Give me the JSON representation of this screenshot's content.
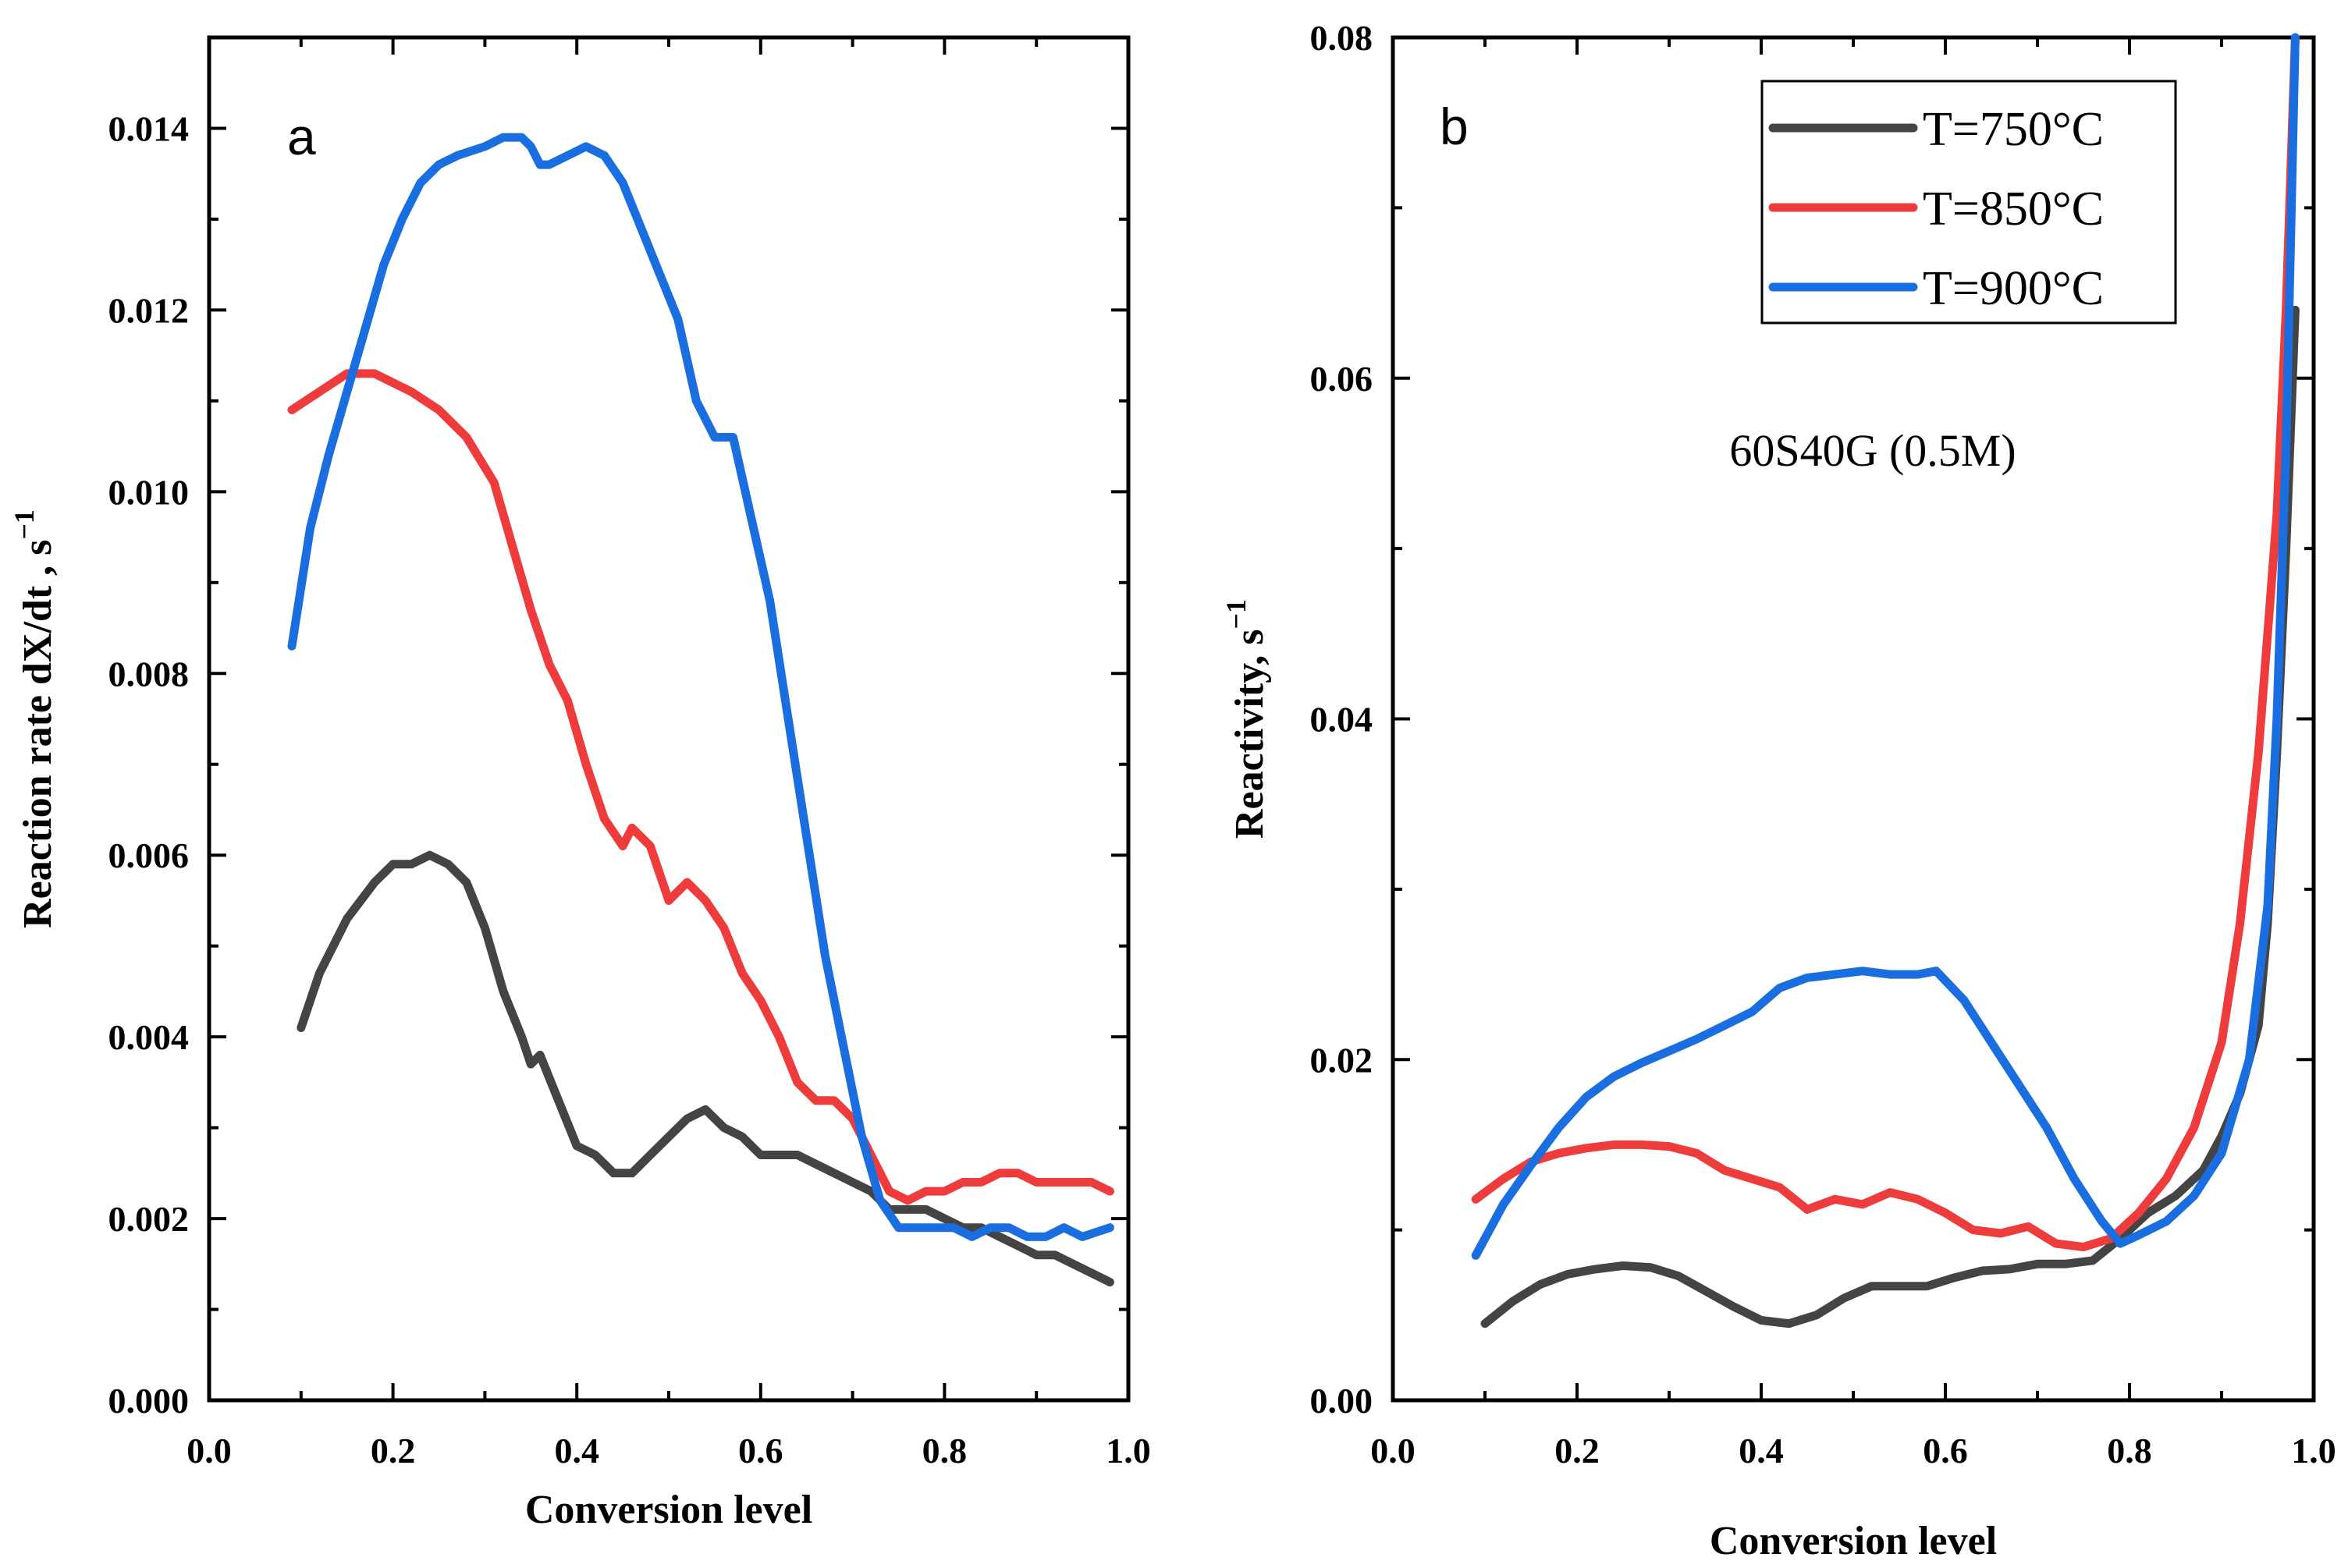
{
  "chart_data": [
    {
      "type": "line",
      "panel_label": "a",
      "title": "",
      "xlabel": "Conversion level",
      "ylabel": "Reaction rate dX/dt , s",
      "ylabel_superscript": "−1",
      "xlim": [
        0.0,
        1.0
      ],
      "ylim": [
        0.0,
        0.015
      ],
      "xticks": [
        0.0,
        0.2,
        0.4,
        0.6,
        0.8,
        1.0
      ],
      "xtick_labels": [
        "0.0",
        "0.2",
        "0.4",
        "0.6",
        "0.8",
        "1.0"
      ],
      "yticks": [
        0.0,
        0.002,
        0.004,
        0.006,
        0.008,
        0.01,
        0.012,
        0.014
      ],
      "ytick_labels": [
        "0.000",
        "0.002",
        "0.004",
        "0.006",
        "0.008",
        "0.010",
        "0.012",
        "0.014"
      ],
      "grid": false,
      "series": [
        {
          "name": "T=750°C",
          "color": "#444444",
          "x": [
            0.1,
            0.12,
            0.15,
            0.18,
            0.2,
            0.22,
            0.24,
            0.26,
            0.28,
            0.3,
            0.32,
            0.34,
            0.35,
            0.36,
            0.38,
            0.4,
            0.42,
            0.44,
            0.46,
            0.48,
            0.5,
            0.52,
            0.54,
            0.56,
            0.58,
            0.6,
            0.62,
            0.64,
            0.66,
            0.68,
            0.7,
            0.72,
            0.74,
            0.76,
            0.78,
            0.8,
            0.82,
            0.84,
            0.86,
            0.88,
            0.9,
            0.92,
            0.94,
            0.96,
            0.98
          ],
          "values": [
            0.0041,
            0.0047,
            0.0053,
            0.0057,
            0.0059,
            0.0059,
            0.006,
            0.0059,
            0.0057,
            0.0052,
            0.0045,
            0.004,
            0.0037,
            0.0038,
            0.0033,
            0.0028,
            0.0027,
            0.0025,
            0.0025,
            0.0027,
            0.0029,
            0.0031,
            0.0032,
            0.003,
            0.0029,
            0.0027,
            0.0027,
            0.0027,
            0.0026,
            0.0025,
            0.0024,
            0.0023,
            0.0021,
            0.0021,
            0.0021,
            0.002,
            0.0019,
            0.0019,
            0.0018,
            0.0017,
            0.0016,
            0.0016,
            0.0015,
            0.0014,
            0.0013
          ]
        },
        {
          "name": "T=850°C",
          "color": "#ee3b3b",
          "x": [
            0.09,
            0.12,
            0.15,
            0.18,
            0.2,
            0.22,
            0.25,
            0.28,
            0.31,
            0.33,
            0.35,
            0.37,
            0.39,
            0.41,
            0.43,
            0.45,
            0.46,
            0.48,
            0.5,
            0.52,
            0.54,
            0.56,
            0.58,
            0.6,
            0.62,
            0.64,
            0.66,
            0.68,
            0.7,
            0.72,
            0.74,
            0.76,
            0.78,
            0.8,
            0.82,
            0.84,
            0.86,
            0.88,
            0.9,
            0.92,
            0.94,
            0.96,
            0.98
          ],
          "values": [
            0.0109,
            0.0111,
            0.0113,
            0.0113,
            0.0112,
            0.0111,
            0.0109,
            0.0106,
            0.0101,
            0.0094,
            0.0087,
            0.0081,
            0.0077,
            0.007,
            0.0064,
            0.0061,
            0.0063,
            0.0061,
            0.0055,
            0.0057,
            0.0055,
            0.0052,
            0.0047,
            0.0044,
            0.004,
            0.0035,
            0.0033,
            0.0033,
            0.0031,
            0.0027,
            0.0023,
            0.0022,
            0.0023,
            0.0023,
            0.0024,
            0.0024,
            0.0025,
            0.0025,
            0.0024,
            0.0024,
            0.0024,
            0.0024,
            0.0023
          ]
        },
        {
          "name": "T=900°C",
          "color": "#1a6ee0",
          "x": [
            0.09,
            0.11,
            0.13,
            0.15,
            0.17,
            0.19,
            0.21,
            0.23,
            0.25,
            0.27,
            0.3,
            0.32,
            0.34,
            0.35,
            0.36,
            0.37,
            0.39,
            0.41,
            0.43,
            0.45,
            0.47,
            0.49,
            0.51,
            0.53,
            0.55,
            0.57,
            0.59,
            0.61,
            0.63,
            0.65,
            0.67,
            0.69,
            0.71,
            0.73,
            0.75,
            0.77,
            0.79,
            0.81,
            0.83,
            0.85,
            0.87,
            0.89,
            0.91,
            0.93,
            0.95,
            0.98
          ],
          "values": [
            0.0083,
            0.0096,
            0.0104,
            0.0111,
            0.0118,
            0.0125,
            0.013,
            0.0134,
            0.0136,
            0.0137,
            0.0138,
            0.0139,
            0.0139,
            0.0138,
            0.0136,
            0.0136,
            0.0137,
            0.0138,
            0.0137,
            0.0134,
            0.0129,
            0.0124,
            0.0119,
            0.011,
            0.0106,
            0.0106,
            0.0097,
            0.0088,
            0.0075,
            0.0062,
            0.0049,
            0.0039,
            0.0029,
            0.0022,
            0.0019,
            0.0019,
            0.0019,
            0.0019,
            0.0018,
            0.0019,
            0.0019,
            0.0018,
            0.0018,
            0.0019,
            0.0018,
            0.0019
          ]
        }
      ]
    },
    {
      "type": "line",
      "panel_label": "b",
      "title": "",
      "annotation": "60S40G (0.5M)",
      "xlabel": "Conversion level",
      "ylabel": "Reactivity, s",
      "ylabel_superscript": "−1",
      "xlim": [
        0.0,
        1.0
      ],
      "ylim": [
        0.0,
        0.08
      ],
      "xticks": [
        0.0,
        0.2,
        0.4,
        0.6,
        0.8,
        1.0
      ],
      "xtick_labels": [
        "0.0",
        "0.2",
        "0.4",
        "0.6",
        "0.8",
        "1.0"
      ],
      "yticks": [
        0.0,
        0.02,
        0.04,
        0.06,
        0.08
      ],
      "ytick_labels": [
        "0.00",
        "0.02",
        "0.04",
        "0.06",
        "0.08"
      ],
      "grid": false,
      "legend_position": "top-right",
      "series": [
        {
          "name": "T=750°C",
          "color": "#444444",
          "x": [
            0.1,
            0.13,
            0.16,
            0.19,
            0.22,
            0.25,
            0.28,
            0.31,
            0.34,
            0.37,
            0.4,
            0.43,
            0.46,
            0.49,
            0.52,
            0.55,
            0.58,
            0.61,
            0.64,
            0.67,
            0.7,
            0.73,
            0.76,
            0.79,
            0.82,
            0.85,
            0.88,
            0.9,
            0.92,
            0.94,
            0.95,
            0.96,
            0.97,
            0.98
          ],
          "values": [
            0.0045,
            0.0058,
            0.0068,
            0.0074,
            0.0077,
            0.0079,
            0.0078,
            0.0073,
            0.0064,
            0.0055,
            0.0047,
            0.0045,
            0.005,
            0.006,
            0.0067,
            0.0067,
            0.0067,
            0.0072,
            0.0076,
            0.0077,
            0.008,
            0.008,
            0.0082,
            0.0095,
            0.011,
            0.012,
            0.0135,
            0.0155,
            0.018,
            0.022,
            0.028,
            0.038,
            0.05,
            0.064
          ]
        },
        {
          "name": "T=850°C",
          "color": "#ee3b3b",
          "x": [
            0.09,
            0.12,
            0.15,
            0.18,
            0.21,
            0.24,
            0.27,
            0.3,
            0.33,
            0.36,
            0.39,
            0.42,
            0.45,
            0.48,
            0.51,
            0.54,
            0.57,
            0.6,
            0.63,
            0.66,
            0.69,
            0.72,
            0.75,
            0.78,
            0.81,
            0.84,
            0.87,
            0.9,
            0.92,
            0.94,
            0.96,
            0.97,
            0.98
          ],
          "values": [
            0.0118,
            0.013,
            0.014,
            0.0145,
            0.0148,
            0.015,
            0.015,
            0.0149,
            0.0145,
            0.0135,
            0.013,
            0.0125,
            0.0112,
            0.0118,
            0.0115,
            0.0122,
            0.0118,
            0.011,
            0.01,
            0.0098,
            0.0102,
            0.0092,
            0.009,
            0.0095,
            0.011,
            0.013,
            0.016,
            0.021,
            0.028,
            0.038,
            0.052,
            0.064,
            0.08
          ]
        },
        {
          "name": "T=900°C",
          "color": "#1a6ee0",
          "x": [
            0.09,
            0.12,
            0.15,
            0.18,
            0.21,
            0.24,
            0.27,
            0.3,
            0.33,
            0.36,
            0.39,
            0.42,
            0.45,
            0.48,
            0.51,
            0.54,
            0.57,
            0.59,
            0.62,
            0.65,
            0.68,
            0.71,
            0.74,
            0.77,
            0.79,
            0.81,
            0.84,
            0.87,
            0.9,
            0.93,
            0.95,
            0.96,
            0.97,
            0.98
          ],
          "values": [
            0.0085,
            0.0115,
            0.0138,
            0.016,
            0.0178,
            0.019,
            0.0198,
            0.0205,
            0.0212,
            0.022,
            0.0228,
            0.0242,
            0.0248,
            0.025,
            0.0252,
            0.025,
            0.025,
            0.0252,
            0.0235,
            0.021,
            0.0185,
            0.016,
            0.013,
            0.0105,
            0.0092,
            0.0097,
            0.0105,
            0.012,
            0.0145,
            0.02,
            0.029,
            0.04,
            0.056,
            0.08
          ]
        }
      ]
    }
  ]
}
